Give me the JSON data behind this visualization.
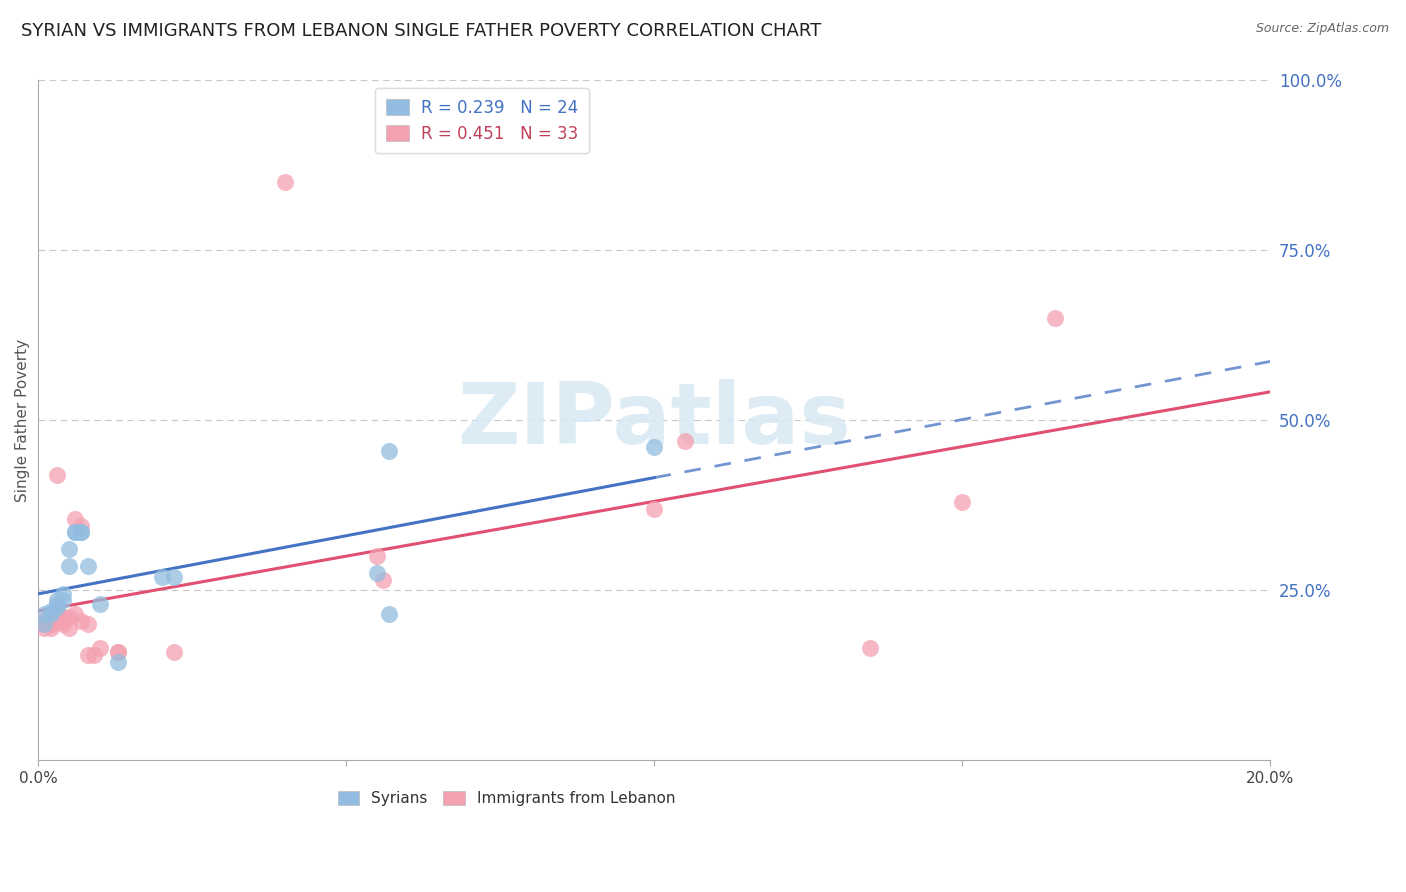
{
  "title": "SYRIAN VS IMMIGRANTS FROM LEBANON SINGLE FATHER POVERTY CORRELATION CHART",
  "source": "Source: ZipAtlas.com",
  "ylabel": "Single Father Poverty",
  "xlim": [
    0.0,
    0.2
  ],
  "ylim": [
    0.0,
    1.0
  ],
  "ytick_positions_right": [
    1.0,
    0.75,
    0.5,
    0.25
  ],
  "ytick_labels_right": [
    "100.0%",
    "75.0%",
    "50.0%",
    "25.0%"
  ],
  "syrian_color": "#92bde0",
  "lebanon_color": "#f4a0b0",
  "background_color": "#ffffff",
  "grid_color": "#c8c8c8",
  "watermark_text": "ZIPatlas",
  "blue_line_color": "#4472c4",
  "pink_line_color": "#e05070",
  "legend_color1": "#4472c4",
  "legend_color2": "#c0405a",
  "legend_R1": "R = 0.239",
  "legend_N1": "N = 24",
  "legend_R2": "R = 0.451",
  "legend_N2": "N = 33",
  "syrians_x": [
    0.001,
    0.001,
    0.002,
    0.002,
    0.003,
    0.003,
    0.003,
    0.004,
    0.004,
    0.005,
    0.005,
    0.006,
    0.006,
    0.007,
    0.007,
    0.008,
    0.01,
    0.013,
    0.02,
    0.022,
    0.055,
    0.057,
    0.057,
    0.1
  ],
  "syrians_y": [
    0.2,
    0.215,
    0.22,
    0.215,
    0.225,
    0.23,
    0.235,
    0.235,
    0.245,
    0.285,
    0.31,
    0.335,
    0.335,
    0.335,
    0.335,
    0.285,
    0.23,
    0.145,
    0.27,
    0.27,
    0.275,
    0.215,
    0.455,
    0.46
  ],
  "lebanon_x": [
    0.001,
    0.001,
    0.001,
    0.002,
    0.002,
    0.002,
    0.002,
    0.003,
    0.003,
    0.004,
    0.004,
    0.004,
    0.005,
    0.005,
    0.006,
    0.006,
    0.007,
    0.007,
    0.008,
    0.008,
    0.009,
    0.01,
    0.013,
    0.013,
    0.022,
    0.04,
    0.055,
    0.056,
    0.1,
    0.105,
    0.135,
    0.15,
    0.165
  ],
  "lebanon_y": [
    0.195,
    0.2,
    0.205,
    0.195,
    0.2,
    0.205,
    0.2,
    0.22,
    0.42,
    0.21,
    0.205,
    0.2,
    0.21,
    0.195,
    0.215,
    0.355,
    0.345,
    0.205,
    0.2,
    0.155,
    0.155,
    0.165,
    0.16,
    0.16,
    0.16,
    0.85,
    0.3,
    0.265,
    0.37,
    0.47,
    0.165,
    0.38,
    0.65
  ],
  "title_fontsize": 13,
  "axis_label_fontsize": 11,
  "tick_fontsize": 11,
  "legend_fontsize": 12
}
